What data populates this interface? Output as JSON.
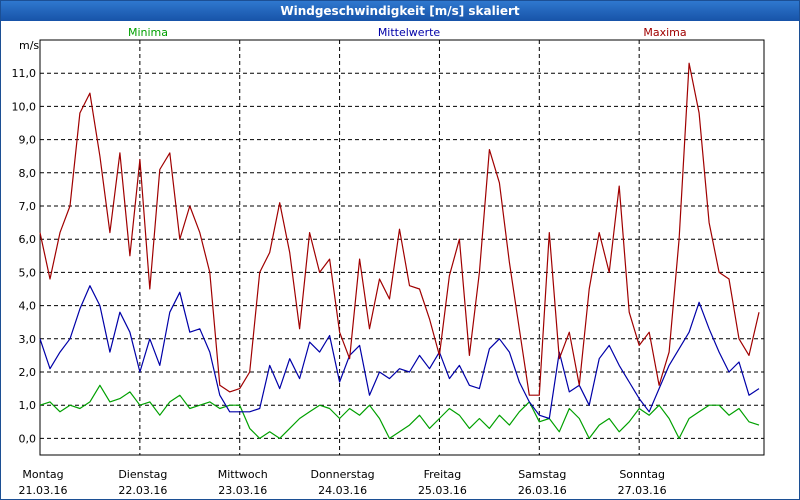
{
  "window": {
    "title": "Windgeschwindigkeit [m/s] skaliert"
  },
  "colors": {
    "min": "#00a000",
    "mean": "#0000a8",
    "max": "#a00000",
    "grid": "#000000"
  },
  "chart_data": {
    "type": "line",
    "title": "Windgeschwindigkeit [m/s] skaliert",
    "ylabel": "m/s",
    "ylim": [
      -0.5,
      12.0
    ],
    "yticks": [
      "0,0",
      "1,0",
      "2,0",
      "3,0",
      "4,0",
      "5,0",
      "6,0",
      "7,0",
      "8,0",
      "9,0",
      "10,0",
      "11,0"
    ],
    "xlim": [
      0,
      7.25
    ],
    "grid": true,
    "legend": "top",
    "days": [
      {
        "name": "Montag",
        "date": "21.03.16"
      },
      {
        "name": "Dienstag",
        "date": "22.03.16"
      },
      {
        "name": "Mittwoch",
        "date": "23.03.16"
      },
      {
        "name": "Donnerstag",
        "date": "24.03.16"
      },
      {
        "name": "Freitag",
        "date": "25.03.16"
      },
      {
        "name": "Samstag",
        "date": "26.03.16"
      },
      {
        "name": "Sonntag",
        "date": "27.03.16"
      }
    ],
    "series": [
      {
        "name": "Minima",
        "key": "min",
        "x": [
          0,
          0.1,
          0.2,
          0.3,
          0.4,
          0.5,
          0.6,
          0.7,
          0.8,
          0.9,
          1.0,
          1.1,
          1.2,
          1.3,
          1.4,
          1.5,
          1.6,
          1.7,
          1.8,
          1.9,
          2.0,
          2.1,
          2.2,
          2.3,
          2.4,
          2.5,
          2.6,
          2.7,
          2.8,
          2.9,
          3.0,
          3.1,
          3.2,
          3.3,
          3.4,
          3.5,
          3.6,
          3.7,
          3.8,
          3.9,
          4.0,
          4.1,
          4.2,
          4.3,
          4.4,
          4.5,
          4.6,
          4.7,
          4.8,
          4.9,
          5.0,
          5.1,
          5.2,
          5.3,
          5.4,
          5.5,
          5.6,
          5.7,
          5.8,
          5.9,
          6.0,
          6.1,
          6.2,
          6.3,
          6.4,
          6.5,
          6.6,
          6.7,
          6.8,
          6.9,
          7.0,
          7.1,
          7.2
        ],
        "y": [
          1.0,
          1.1,
          0.8,
          1.0,
          0.9,
          1.1,
          1.6,
          1.1,
          1.2,
          1.4,
          1.0,
          1.1,
          0.7,
          1.1,
          1.3,
          0.9,
          1.0,
          1.1,
          0.9,
          1.0,
          1.0,
          0.3,
          0.0,
          0.2,
          0.0,
          0.3,
          0.6,
          0.8,
          1.0,
          0.9,
          0.6,
          0.9,
          0.7,
          1.0,
          0.6,
          0.0,
          0.2,
          0.4,
          0.7,
          0.3,
          0.6,
          0.9,
          0.7,
          0.3,
          0.6,
          0.3,
          0.7,
          0.4,
          0.8,
          1.1,
          0.5,
          0.6,
          0.2,
          0.9,
          0.6,
          0.0,
          0.4,
          0.6,
          0.2,
          0.5,
          0.9,
          0.7,
          1.0,
          0.6,
          0.0,
          0.6,
          0.8,
          1.0,
          1.0,
          0.7,
          0.9,
          0.5,
          0.4
        ]
      },
      {
        "name": "Mittelwerte",
        "key": "mean",
        "x": [
          0,
          0.1,
          0.2,
          0.3,
          0.4,
          0.5,
          0.6,
          0.7,
          0.8,
          0.9,
          1.0,
          1.1,
          1.2,
          1.3,
          1.4,
          1.5,
          1.6,
          1.7,
          1.8,
          1.9,
          2.0,
          2.1,
          2.2,
          2.3,
          2.4,
          2.5,
          2.6,
          2.7,
          2.8,
          2.9,
          3.0,
          3.1,
          3.2,
          3.3,
          3.4,
          3.5,
          3.6,
          3.7,
          3.8,
          3.9,
          4.0,
          4.1,
          4.2,
          4.3,
          4.4,
          4.5,
          4.6,
          4.7,
          4.8,
          4.9,
          5.0,
          5.1,
          5.2,
          5.3,
          5.4,
          5.5,
          5.6,
          5.7,
          5.8,
          5.9,
          6.0,
          6.1,
          6.2,
          6.3,
          6.4,
          6.5,
          6.6,
          6.7,
          6.8,
          6.9,
          7.0,
          7.1,
          7.2
        ],
        "y": [
          3.0,
          2.1,
          2.6,
          3.0,
          3.9,
          4.6,
          4.0,
          2.6,
          3.8,
          3.2,
          2.0,
          3.0,
          2.2,
          3.8,
          4.4,
          3.2,
          3.3,
          2.6,
          1.3,
          0.8,
          0.8,
          0.8,
          0.9,
          2.2,
          1.5,
          2.4,
          1.8,
          2.9,
          2.6,
          3.1,
          1.7,
          2.5,
          2.8,
          1.3,
          2.0,
          1.8,
          2.1,
          2.0,
          2.5,
          2.1,
          2.6,
          1.8,
          2.2,
          1.6,
          1.5,
          2.7,
          3.0,
          2.6,
          1.7,
          1.1,
          0.7,
          0.6,
          2.6,
          1.4,
          1.6,
          1.0,
          2.4,
          2.8,
          2.2,
          1.7,
          1.2,
          0.8,
          1.5,
          2.2,
          2.7,
          3.2,
          4.1,
          3.3,
          2.6,
          2.0,
          2.3,
          1.3,
          1.5
        ]
      },
      {
        "name": "Maxima",
        "key": "max",
        "x": [
          0,
          0.1,
          0.2,
          0.3,
          0.4,
          0.5,
          0.6,
          0.7,
          0.8,
          0.9,
          1.0,
          1.1,
          1.2,
          1.3,
          1.4,
          1.5,
          1.6,
          1.7,
          1.8,
          1.9,
          2.0,
          2.1,
          2.2,
          2.3,
          2.4,
          2.5,
          2.6,
          2.7,
          2.8,
          2.9,
          3.0,
          3.1,
          3.2,
          3.3,
          3.4,
          3.5,
          3.6,
          3.7,
          3.8,
          3.9,
          4.0,
          4.1,
          4.2,
          4.3,
          4.4,
          4.5,
          4.6,
          4.7,
          4.8,
          4.9,
          5.0,
          5.1,
          5.2,
          5.3,
          5.4,
          5.5,
          5.6,
          5.7,
          5.8,
          5.9,
          6.0,
          6.1,
          6.2,
          6.3,
          6.4,
          6.5,
          6.6,
          6.7,
          6.8,
          6.9,
          7.0,
          7.1,
          7.2
        ],
        "y": [
          6.2,
          4.8,
          6.2,
          7.0,
          9.8,
          10.4,
          8.5,
          6.2,
          8.6,
          5.5,
          8.4,
          4.5,
          8.1,
          8.6,
          6.0,
          7.0,
          6.2,
          5.0,
          1.6,
          1.4,
          1.5,
          2.0,
          5.0,
          5.6,
          7.1,
          5.6,
          3.3,
          6.2,
          5.0,
          5.4,
          3.2,
          2.4,
          5.4,
          3.3,
          4.8,
          4.2,
          6.3,
          4.6,
          4.5,
          3.6,
          2.5,
          4.9,
          6.0,
          2.5,
          5.0,
          8.7,
          7.7,
          5.3,
          3.3,
          1.3,
          1.3,
          6.2,
          2.4,
          3.2,
          1.6,
          4.5,
          6.2,
          5.0,
          7.6,
          3.8,
          2.8,
          3.2,
          1.6,
          2.6,
          6.0,
          11.3,
          9.8,
          6.5,
          5.0,
          4.8,
          3.0,
          2.5,
          3.8
        ]
      }
    ]
  }
}
